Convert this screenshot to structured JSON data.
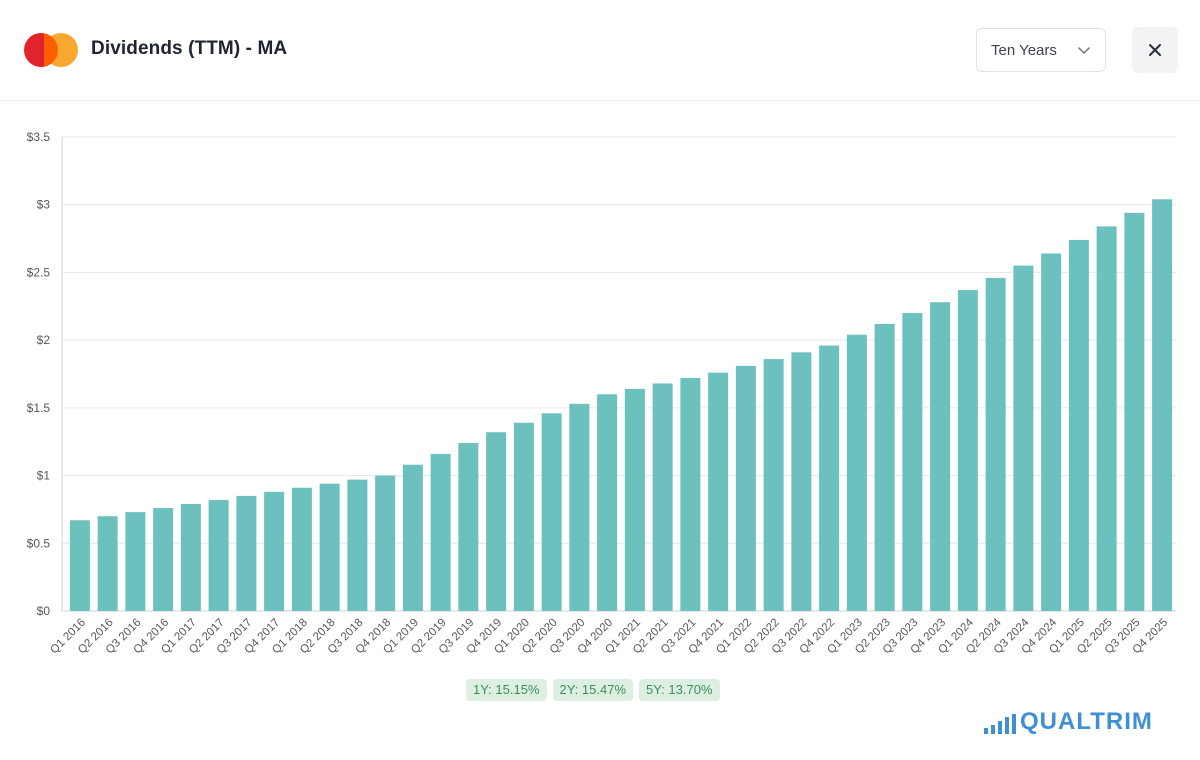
{
  "header": {
    "title": "Dividends (TTM) - MA",
    "range_selected": "Ten Years",
    "close_glyph": "✕"
  },
  "icons": {
    "logo": "mastercard-logo-icon",
    "dropdown": "chevron-down-icon",
    "close": "close-icon",
    "brand": "bar-chart-icon"
  },
  "colors": {
    "bar": "#6cc0bd",
    "grid": "#e4e6ea",
    "badge_bg": "#dcefe1",
    "badge_text": "#3c8f57",
    "brand": "#3f8fd6"
  },
  "chart_data": {
    "type": "bar",
    "title": "",
    "xlabel": "",
    "ylabel": "",
    "ylim": [
      0,
      3.5
    ],
    "yticks": [
      0,
      0.5,
      1,
      1.5,
      2,
      2.5,
      3,
      3.5
    ],
    "ytick_labels": [
      "$0",
      "$0.5",
      "$1",
      "$1.5",
      "$2",
      "$2.5",
      "$3",
      "$3.5"
    ],
    "categories": [
      "Q1 2016",
      "Q2 2016",
      "Q3 2016",
      "Q4 2016",
      "Q1 2017",
      "Q2 2017",
      "Q3 2017",
      "Q4 2017",
      "Q1 2018",
      "Q2 2018",
      "Q3 2018",
      "Q4 2018",
      "Q1 2019",
      "Q2 2019",
      "Q3 2019",
      "Q4 2019",
      "Q1 2020",
      "Q2 2020",
      "Q3 2020",
      "Q4 2020",
      "Q1 2021",
      "Q2 2021",
      "Q3 2021",
      "Q4 2021",
      "Q1 2022",
      "Q2 2022",
      "Q3 2022",
      "Q4 2022",
      "Q1 2023",
      "Q2 2023",
      "Q3 2023",
      "Q4 2023",
      "Q1 2024",
      "Q2 2024",
      "Q3 2024",
      "Q4 2024",
      "Q1 2025",
      "Q2 2025",
      "Q3 2025",
      "Q4 2025"
    ],
    "values": [
      0.67,
      0.7,
      0.73,
      0.76,
      0.79,
      0.82,
      0.85,
      0.88,
      0.91,
      0.94,
      0.97,
      1.0,
      1.08,
      1.16,
      1.24,
      1.32,
      1.39,
      1.46,
      1.53,
      1.6,
      1.64,
      1.68,
      1.72,
      1.76,
      1.81,
      1.86,
      1.91,
      1.96,
      2.04,
      2.12,
      2.2,
      2.28,
      2.37,
      2.46,
      2.55,
      2.64,
      2.74,
      2.84,
      2.94,
      3.04
    ]
  },
  "growth": [
    {
      "label": "1Y: 15.15%"
    },
    {
      "label": "2Y: 15.47%"
    },
    {
      "label": "5Y: 13.70%"
    }
  ],
  "brand": {
    "name": "QUALTRIM"
  }
}
